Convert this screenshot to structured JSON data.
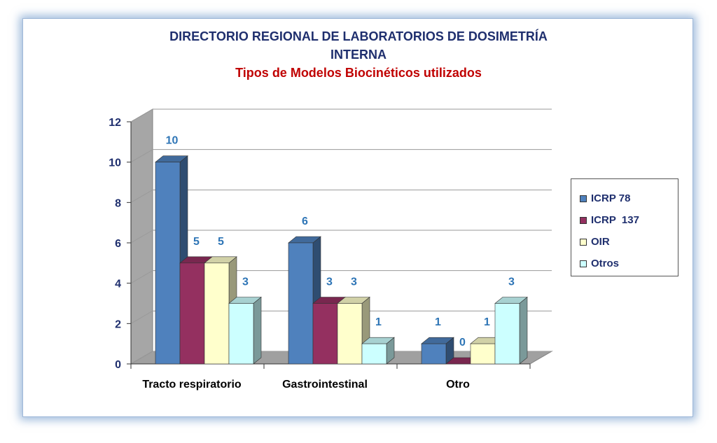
{
  "chart_data": {
    "type": "bar",
    "title_line1": "DIRECTORIO REGIONAL DE LABORATORIOS  DE DOSIMETRÍA",
    "title_line2": "INTERNA",
    "subtitle": "Tipos de Modelos Biocinéticos utilizados",
    "categories": [
      "Tracto respiratorio",
      "Gastrointestinal",
      "Otro"
    ],
    "series": [
      {
        "name": "ICRP 78",
        "values": [
          10,
          6,
          1
        ],
        "color": "#4f81bd"
      },
      {
        "name": "ICRP  137",
        "values": [
          5,
          3,
          0
        ],
        "color": "#943060"
      },
      {
        "name": "OIR",
        "values": [
          5,
          3,
          1
        ],
        "color": "#ffffcc"
      },
      {
        "name": "Otros",
        "values": [
          3,
          1,
          3
        ],
        "color": "#ccffff"
      }
    ],
    "ylim": [
      0,
      12
    ],
    "yticks": [
      0,
      2,
      4,
      6,
      8,
      10,
      12
    ],
    "data_label_color": "#2e75b6",
    "grid": true,
    "three_d": true,
    "legend_position": "right"
  }
}
